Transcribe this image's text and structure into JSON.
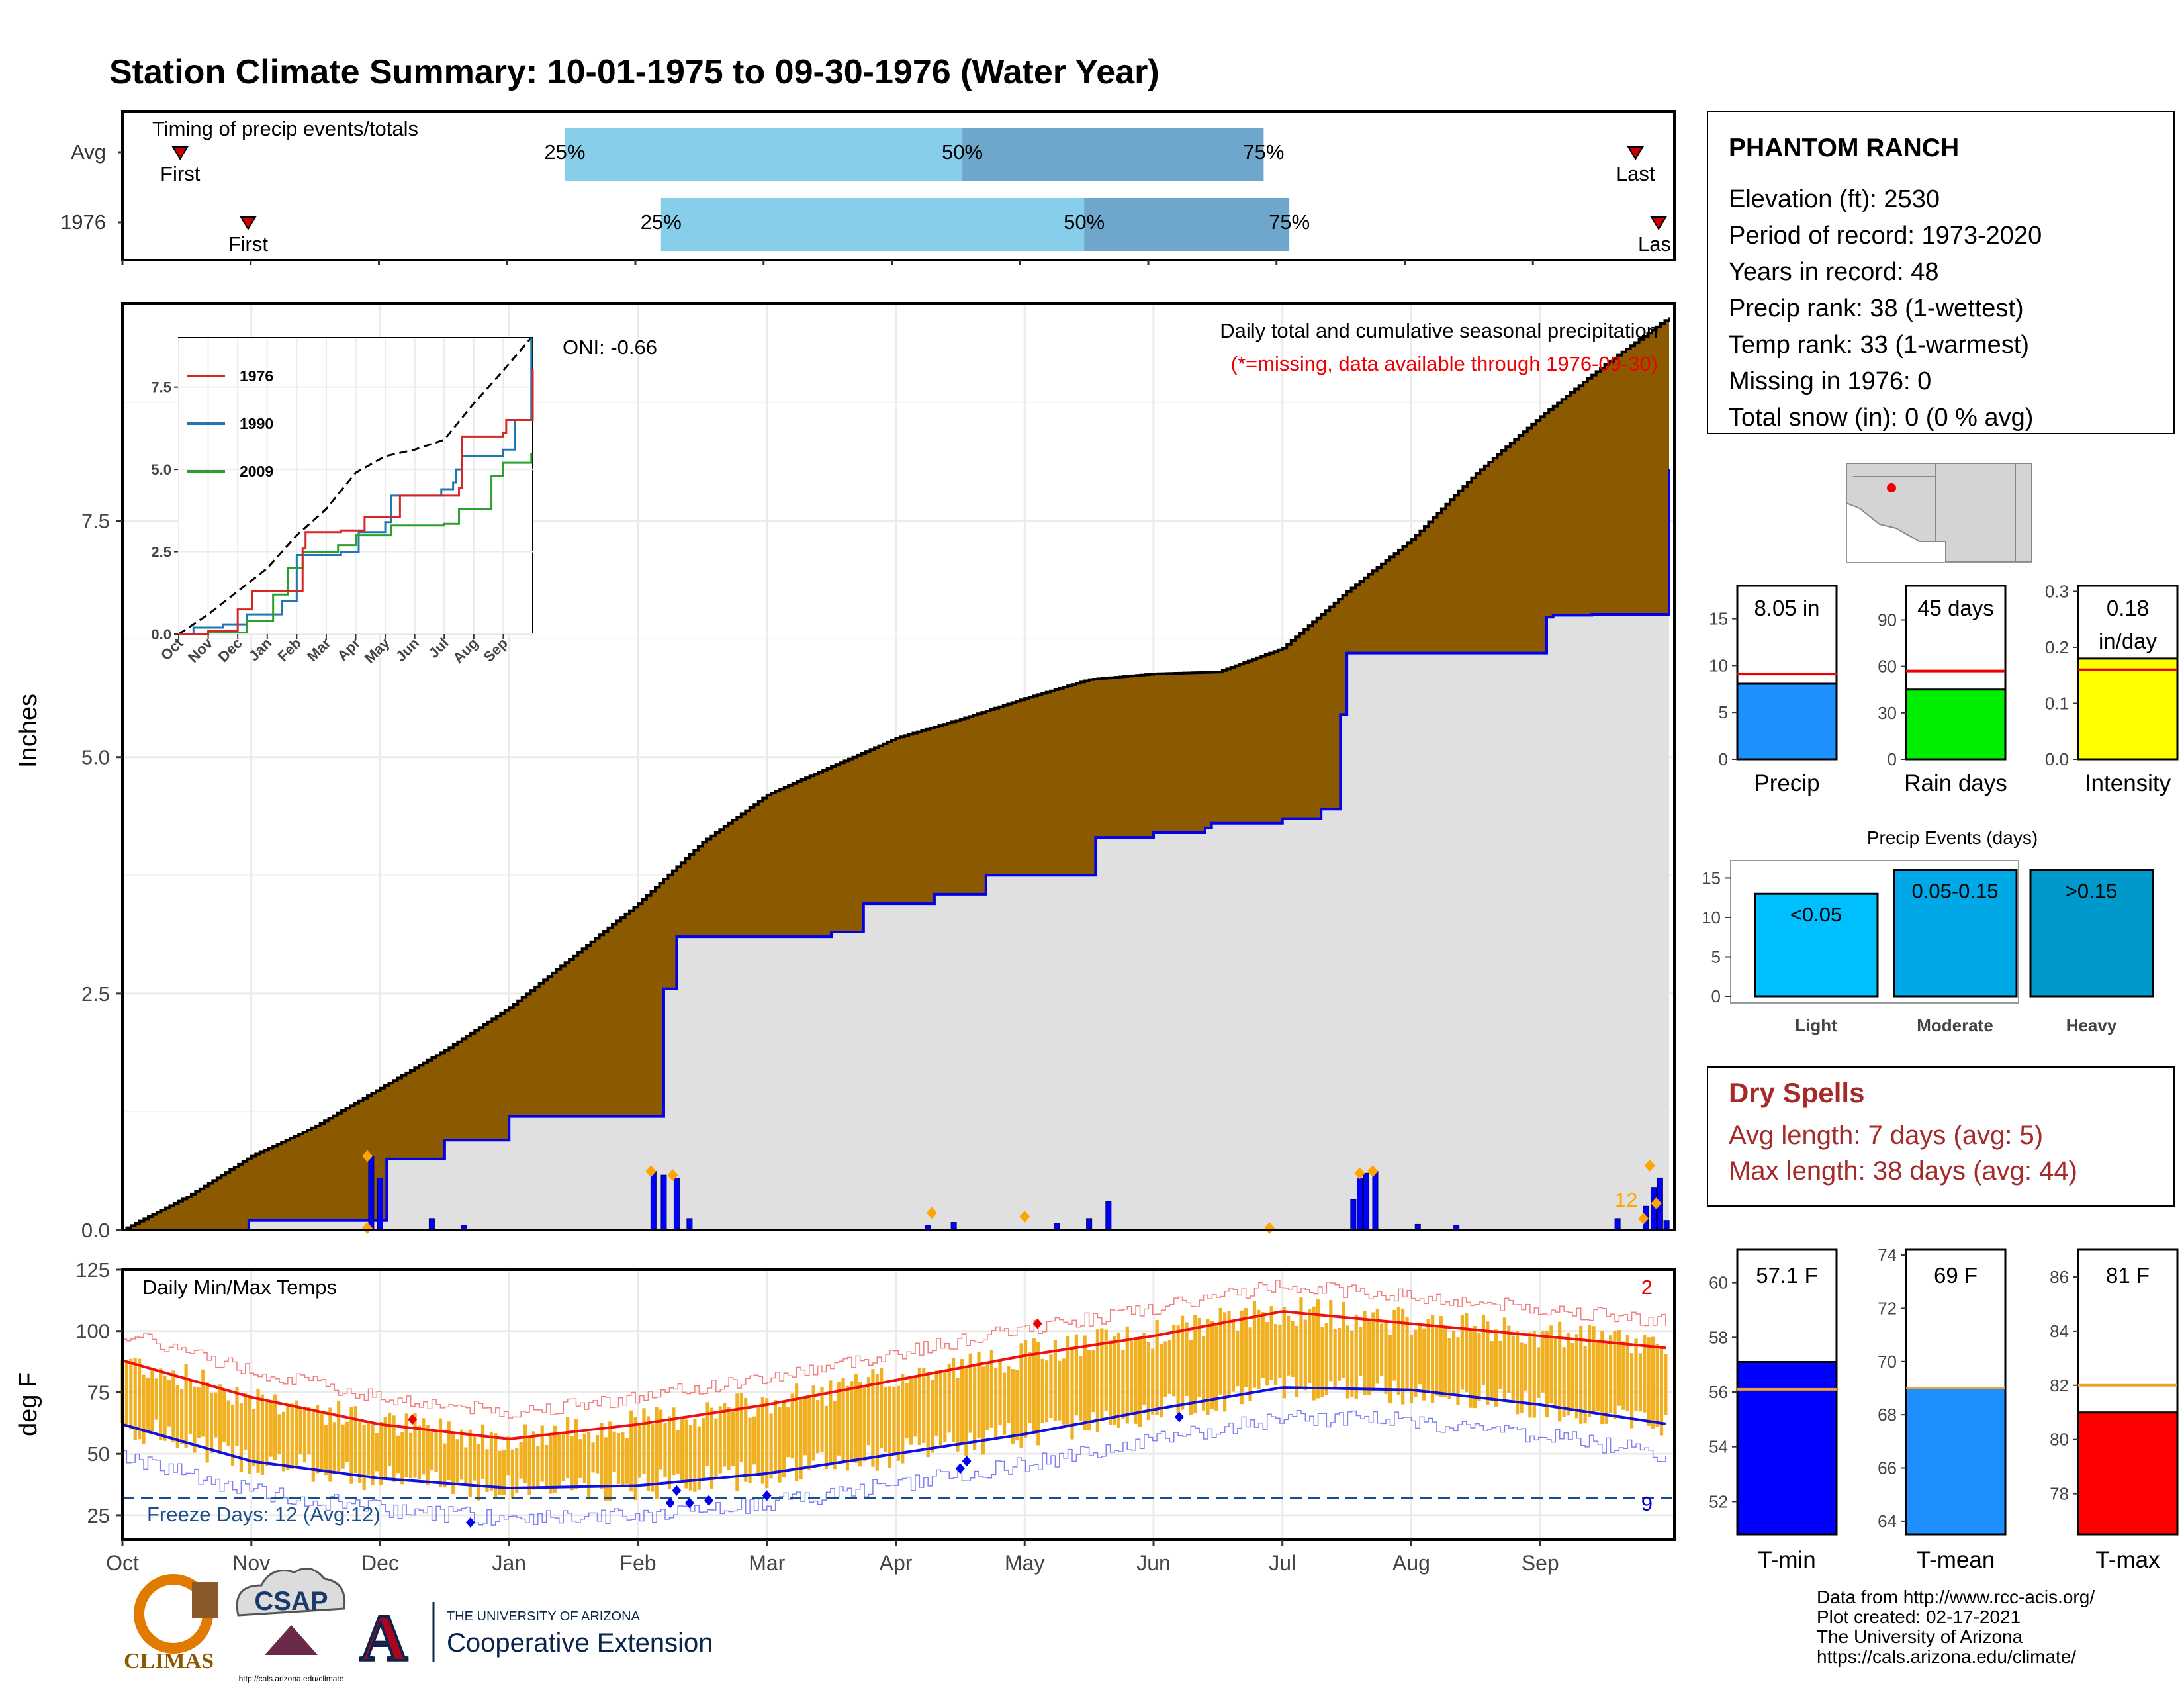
{
  "title": "Station Climate Summary: 10-01-1975 to 09-30-1976 (Water Year)",
  "colors": {
    "title": "#8b2500",
    "precip_fill": "#8b5a00",
    "cum_line": "#0000ee",
    "cum_fill": "#e0e0e0",
    "temp_bar": "#f0b020",
    "tmax_line": "#ee1111",
    "tmin_line": "#1111dd",
    "timing_light": "#87ceeb",
    "timing_dark": "#6fa7cc"
  },
  "timing": {
    "title": "Timing of precip events/totals",
    "rows": [
      {
        "label": "Avg",
        "first_label": "First",
        "last_label": "Last",
        "first_month": 0.45,
        "last_month": 11.8,
        "q25": 3.45,
        "q50": 6.55,
        "q75": 8.9,
        "q25_label": "25%",
        "q50_label": "50%",
        "q75_label": "75%"
      },
      {
        "label": "1976",
        "first_label": "First",
        "last_label": "Las",
        "first_month": 0.98,
        "last_month": 11.98,
        "q25": 4.2,
        "q50": 7.5,
        "q75": 9.1,
        "q25_label": "25%",
        "q50_label": "50%",
        "q75_label": "75%"
      }
    ]
  },
  "station": {
    "name": "PHANTOM RANCH",
    "lines": [
      "Elevation (ft): 2530",
      "Period of record: 1973-2020",
      "Years in record: 48",
      "Precip rank: 38 (1-wettest)",
      "Temp rank: 33 (1-warmest)",
      "Missing in 1976: 0",
      "Total snow (in): 0 (0 % avg)"
    ]
  },
  "precip_panel": {
    "ylabel": "Inches",
    "oni": "ONI: -0.66",
    "subtitle": "Daily total and cumulative seasonal precipitation",
    "missing_note": "(*=missing, data available through 1976-09-30)",
    "count_label": "12",
    "yticks": [
      "0.0",
      "2.5",
      "5.0",
      "7.5"
    ],
    "ymax": 9.8
  },
  "inset": {
    "yticks": [
      "0.0",
      "2.5",
      "5.0",
      "7.5"
    ],
    "months": [
      "Oct",
      "Nov",
      "Dec",
      "Jan",
      "Feb",
      "Mar",
      "Apr",
      "May",
      "Jun",
      "Jul",
      "Aug",
      "Sep"
    ],
    "legend": [
      "1976",
      "1990",
      "2009"
    ]
  },
  "temp_panel": {
    "title": "Daily Min/Max Temps",
    "ylabel": "deg F",
    "freeze_label": "Freeze Days: 12 (Avg:12)",
    "max_count": "2",
    "min_count": "9",
    "yticks": [
      "25",
      "50",
      "75",
      "100",
      "125"
    ]
  },
  "months": [
    "Oct",
    "Nov",
    "Dec",
    "Jan",
    "Feb",
    "Mar",
    "Apr",
    "May",
    "Jun",
    "Jul",
    "Aug",
    "Sep"
  ],
  "mini_bars": [
    {
      "label": "Precip",
      "value_label": "8.05 in",
      "value": 8.05,
      "avg": 9.1,
      "ymax": 18.5,
      "ticks": [
        "0",
        "5",
        "10",
        "15"
      ],
      "color": "#1e90ff"
    },
    {
      "label": "Rain days",
      "value_label": "45 days",
      "value": 45,
      "avg": 57,
      "ymax": 112,
      "ticks": [
        "0",
        "30",
        "60",
        "90"
      ],
      "color": "#00ee00"
    },
    {
      "label": "Intensity",
      "value_label": "0.18",
      "value_label2": "in/day",
      "value": 0.18,
      "avg": 0.16,
      "ymax": 0.31,
      "ticks": [
        "0.0",
        "0.1",
        "0.2",
        "0.3"
      ],
      "color": "#ffff00"
    }
  ],
  "events": {
    "title": "Precip Events (days)",
    "ticks": [
      "0",
      "5",
      "10",
      "15"
    ],
    "bars": [
      {
        "category": "Light",
        "range_label": "<0.05",
        "value": 13,
        "color": "#00bfff"
      },
      {
        "category": "Moderate",
        "range_label": "0.05-0.15",
        "value": 16,
        "color": "#00a8e8"
      },
      {
        "category": "Heavy",
        "range_label": ">0.15",
        "value": 16,
        "color": "#0099cc"
      }
    ]
  },
  "dry_spells": {
    "title": "Dry Spells",
    "avg_line": "Avg length: 7 days (avg: 5)",
    "max_line": "Max length: 38 days (avg: 44)"
  },
  "temp_bars": [
    {
      "label": "T-min",
      "value_label": "57.1 F",
      "value": 57.1,
      "avg": 56.1,
      "ymin": 50.8,
      "ymax": 61.2,
      "ticks": [
        52,
        54,
        56,
        58,
        60
      ],
      "color": "#0000ff"
    },
    {
      "label": "T-mean",
      "value_label": "69 F",
      "value": 69,
      "avg": 69,
      "ymin": 63.5,
      "ymax": 74.2,
      "ticks": [
        64,
        66,
        68,
        70,
        72,
        74
      ],
      "color": "#1e90ff"
    },
    {
      "label": "T-max",
      "value_label": "81 F",
      "value": 81,
      "avg": 82,
      "ymin": 76.5,
      "ymax": 87.0,
      "ticks": [
        78,
        80,
        82,
        84,
        86
      ],
      "color": "#ff0000"
    }
  ],
  "footer": {
    "lines": [
      "Data from http://www.rcc-acis.org/",
      "Plot created: 02-17-2021",
      "The University of Arizona",
      "https://cals.arizona.edu/climate/"
    ],
    "logo_climas": "CLIMAS",
    "logo_csap": "CSAP",
    "logo_csap_url": "http://cals.arizona.edu/climate",
    "logo_ua_line1": "THE UNIVERSITY OF ARIZONA",
    "logo_ua_line2": "Cooperative Extension",
    "logo_ua_mark": "A"
  },
  "chart_data": [
    {
      "type": "area",
      "subtitle": "Daily total and cumulative seasonal precipitation",
      "ylabel": "Inches",
      "x_unit": "month index from Oct 1",
      "avg_cumulative": {
        "x": [
          0,
          0.5,
          1,
          1.5,
          2,
          2.5,
          3,
          3.5,
          4,
          4.5,
          5,
          5.5,
          6,
          6.5,
          7,
          7.5,
          8,
          8.5,
          9,
          9.5,
          10,
          10.5,
          11,
          11.5,
          12
        ],
        "y": [
          0,
          0.35,
          0.78,
          1.1,
          1.5,
          1.9,
          2.35,
          2.9,
          3.45,
          4.1,
          4.6,
          4.9,
          5.2,
          5.4,
          5.62,
          5.82,
          5.88,
          5.9,
          6.15,
          6.75,
          7.3,
          8.0,
          8.6,
          9.15,
          9.65
        ]
      },
      "cumulative_1976": {
        "x": [
          0,
          0.98,
          1.95,
          2.05,
          2.5,
          3.0,
          3.95,
          4.2,
          4.3,
          5.0,
          5.5,
          5.75,
          6.3,
          6.7,
          7.55,
          8.0,
          8.2,
          8.4,
          8.45,
          9.0,
          9.3,
          9.45,
          9.5,
          11.0,
          11.05,
          11.1,
          11.3,
          11.4,
          11.95,
          12.0
        ],
        "y": [
          0,
          0.1,
          0.1,
          0.75,
          0.95,
          1.2,
          1.2,
          2.55,
          3.1,
          3.1,
          3.15,
          3.45,
          3.55,
          3.75,
          4.15,
          4.2,
          4.2,
          4.25,
          4.3,
          4.35,
          4.45,
          5.45,
          6.1,
          6.1,
          6.48,
          6.5,
          6.5,
          6.51,
          6.51,
          8.05
        ]
      },
      "daily_bars": [
        {
          "x": 1.93,
          "y": 0.78
        },
        {
          "x": 2.0,
          "y": 0.55
        },
        {
          "x": 2.4,
          "y": 0.12
        },
        {
          "x": 2.65,
          "y": 0.05
        },
        {
          "x": 4.12,
          "y": 0.62
        },
        {
          "x": 4.2,
          "y": 0.58
        },
        {
          "x": 4.3,
          "y": 0.55
        },
        {
          "x": 4.4,
          "y": 0.12
        },
        {
          "x": 6.25,
          "y": 0.05
        },
        {
          "x": 6.45,
          "y": 0.08
        },
        {
          "x": 7.25,
          "y": 0.07
        },
        {
          "x": 7.5,
          "y": 0.12
        },
        {
          "x": 7.65,
          "y": 0.3
        },
        {
          "x": 9.55,
          "y": 0.32
        },
        {
          "x": 9.6,
          "y": 0.55
        },
        {
          "x": 9.65,
          "y": 0.6
        },
        {
          "x": 9.72,
          "y": 0.62
        },
        {
          "x": 10.05,
          "y": 0.06
        },
        {
          "x": 10.35,
          "y": 0.05
        },
        {
          "x": 11.6,
          "y": 0.12
        },
        {
          "x": 11.82,
          "y": 0.25
        },
        {
          "x": 11.88,
          "y": 0.45
        },
        {
          "x": 11.93,
          "y": 0.55
        },
        {
          "x": 11.98,
          "y": 0.1
        }
      ]
    },
    {
      "type": "line",
      "title": "Daily Min/Max Temps",
      "ylabel": "deg F",
      "ylim": [
        15,
        125
      ],
      "tmax_avg": {
        "x": [
          0,
          1,
          2,
          3,
          4,
          5,
          6,
          7,
          8,
          9,
          10,
          11,
          12
        ],
        "y": [
          88,
          73,
          62,
          56,
          62,
          70,
          80,
          90,
          98,
          108,
          103,
          98,
          93
        ]
      },
      "tmin_avg": {
        "x": [
          0,
          1,
          2,
          3,
          4,
          5,
          6,
          7,
          8,
          9,
          10,
          11,
          12
        ],
        "y": [
          62,
          47,
          40,
          36,
          37,
          42,
          50,
          58,
          68,
          77,
          76,
          70,
          62
        ]
      },
      "freeze_line": 32
    }
  ]
}
